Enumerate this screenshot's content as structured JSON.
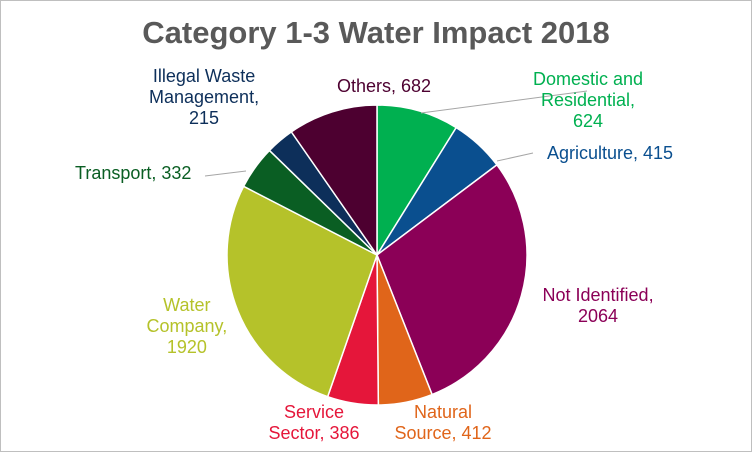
{
  "chart_data": {
    "type": "pie",
    "title": "Category 1-3 Water Impact 2018",
    "slices": [
      {
        "label": "Domestic and Residential",
        "value": 624,
        "color": "#00b050",
        "text": [
          "Domestic and",
          "Residential,",
          "624"
        ]
      },
      {
        "label": "Agriculture",
        "value": 415,
        "color": "#0a4f8f",
        "text": [
          "Agriculture, 415"
        ]
      },
      {
        "label": "Not Identified",
        "value": 2064,
        "color": "#8b0057",
        "text": [
          "Not Identified,",
          "2064"
        ]
      },
      {
        "label": "Natural Source",
        "value": 412,
        "color": "#e0651a",
        "text": [
          "Natural",
          "Source, 412"
        ]
      },
      {
        "label": "Service Sector",
        "value": 386,
        "color": "#e5163a",
        "text": [
          "Service",
          "Sector, 386"
        ]
      },
      {
        "label": "Water Company",
        "value": 1920,
        "color": "#b5c22a",
        "text": [
          "Water",
          "Company,",
          "1920"
        ]
      },
      {
        "label": "Transport",
        "value": 332,
        "color": "#0a5e23",
        "text": [
          "Transport, 332"
        ]
      },
      {
        "label": "Illegal Waste Management",
        "value": 215,
        "color": "#0d2f5a",
        "text": [
          "Illegal Waste",
          "Management,",
          "215"
        ]
      },
      {
        "label": "Others",
        "value": 682,
        "color": "#4d0030",
        "text": [
          "Others, 682"
        ]
      }
    ],
    "label_colors": [
      "#00b050",
      "#0a4f8f",
      "#8b0057",
      "#e0651a",
      "#e5163a",
      "#b5c22a",
      "#0a5e23",
      "#0d2f5a",
      "#4d0030"
    ]
  }
}
